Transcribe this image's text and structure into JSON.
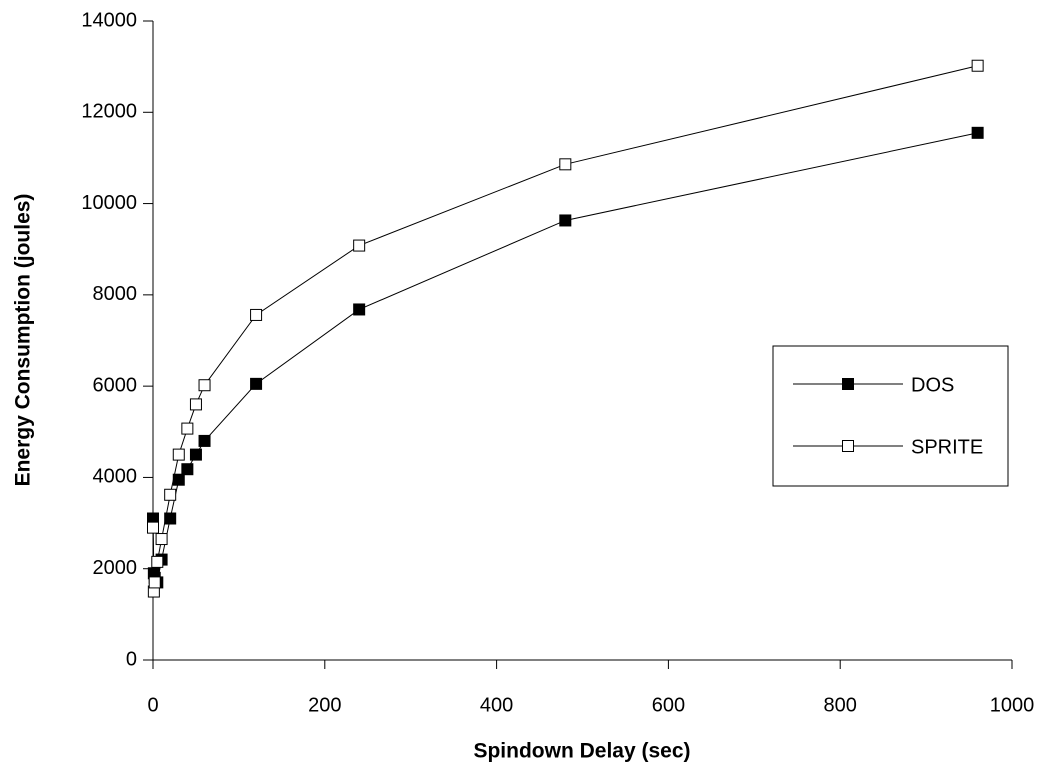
{
  "chart_data": {
    "type": "line",
    "x_label": "Spindown Delay (sec)",
    "y_label": "Energy Consumption (joules)",
    "xlim": [
      0,
      1000
    ],
    "xticks": [
      0,
      200,
      400,
      600,
      800,
      1000
    ],
    "ylim": [
      0,
      14000
    ],
    "yticks": [
      0,
      2000,
      4000,
      6000,
      8000,
      10000,
      12000,
      14000
    ],
    "legend": "right",
    "series": [
      {
        "name": "DOS",
        "color": "#000000",
        "marker_fill": "#000000",
        "x": [
          0,
          1,
          2,
          5,
          10,
          20,
          30,
          40,
          50,
          60,
          120,
          240,
          480,
          960
        ],
        "values": [
          3100,
          1900,
          1800,
          1700,
          2200,
          3100,
          3950,
          4180,
          4500,
          4800,
          6050,
          7680,
          9630,
          11550
        ]
      },
      {
        "name": "SPRITE",
        "color": "#000000",
        "marker_fill": "#ffffff",
        "x": [
          0,
          1,
          2,
          5,
          10,
          20,
          30,
          40,
          50,
          60,
          120,
          240,
          480,
          960
        ],
        "values": [
          2900,
          1500,
          1700,
          2150,
          2650,
          3620,
          4500,
          5070,
          5600,
          6020,
          7560,
          9080,
          10860,
          13020
        ]
      }
    ]
  }
}
